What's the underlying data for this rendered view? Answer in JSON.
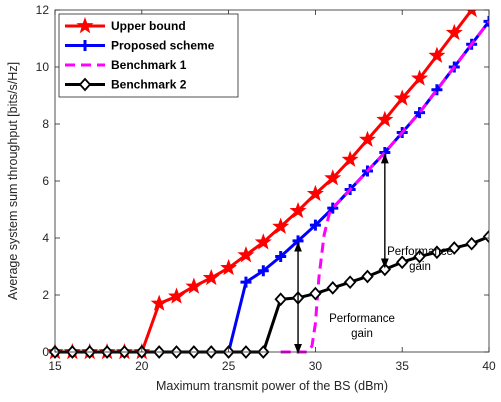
{
  "chart_data": {
    "type": "line",
    "xlabel": "Maximum transmit power of the BS (dBm)",
    "ylabel": "Average system sum throughput [bits/s/Hz]",
    "xlim": [
      15,
      40
    ],
    "ylim": [
      0,
      12
    ],
    "x_ticks": [
      15,
      20,
      25,
      30,
      35,
      40
    ],
    "y_ticks": [
      0,
      2,
      4,
      6,
      8,
      10,
      12
    ],
    "legend_position": "top-left",
    "grid": false,
    "series": [
      {
        "name": "Upper bound",
        "color": "#ff0000",
        "marker": "star",
        "dash": "solid",
        "x": [
          15,
          16,
          17,
          18,
          19,
          20,
          21,
          22,
          23,
          24,
          25,
          26,
          27,
          28,
          29,
          30,
          31,
          32,
          33,
          34,
          35,
          36,
          37,
          38,
          39,
          40
        ],
        "y": [
          0,
          0,
          0,
          0,
          0,
          0,
          1.7,
          1.95,
          2.3,
          2.6,
          2.95,
          3.4,
          3.85,
          4.4,
          4.95,
          5.55,
          6.1,
          6.75,
          7.45,
          8.15,
          8.9,
          9.6,
          10.4,
          11.2,
          12.0,
          12.8
        ]
      },
      {
        "name": "Proposed scheme",
        "color": "#0000ff",
        "marker": "plus",
        "dash": "solid",
        "x": [
          15,
          16,
          17,
          18,
          19,
          20,
          21,
          22,
          23,
          24,
          25,
          26,
          27,
          28,
          29,
          30,
          31,
          32,
          33,
          34,
          35,
          36,
          37,
          38,
          39,
          40
        ],
        "y": [
          0,
          0,
          0,
          0,
          0,
          0,
          0,
          0,
          0,
          0,
          0,
          2.45,
          2.85,
          3.35,
          3.9,
          4.45,
          5.05,
          5.7,
          6.35,
          7.0,
          7.7,
          8.4,
          9.2,
          10.0,
          10.8,
          11.6
        ]
      },
      {
        "name": "Benchmark 1",
        "color": "#ff00ff",
        "marker": "none",
        "dash": "dashed",
        "x": [
          28,
          29,
          29.5,
          29.8,
          30,
          30.2,
          30.5,
          30.8,
          31,
          32,
          33,
          34,
          35,
          36,
          37,
          38,
          39,
          40
        ],
        "y": [
          0,
          0,
          0,
          0.2,
          1.0,
          2.6,
          4.1,
          4.85,
          5.05,
          5.7,
          6.35,
          7.0,
          7.7,
          8.4,
          9.2,
          10.0,
          10.8,
          11.6
        ]
      },
      {
        "name": "Benchmark 2",
        "color": "#000000",
        "marker": "diamond",
        "dash": "solid",
        "x": [
          15,
          16,
          17,
          18,
          19,
          20,
          21,
          22,
          23,
          24,
          25,
          26,
          27,
          28,
          29,
          30,
          31,
          32,
          33,
          34,
          35,
          36,
          37,
          38,
          39,
          40
        ],
        "y": [
          0,
          0,
          0,
          0,
          0,
          0,
          0,
          0,
          0,
          0,
          0,
          0,
          0,
          1.85,
          1.9,
          2.05,
          2.25,
          2.45,
          2.65,
          2.9,
          3.15,
          3.35,
          3.5,
          3.65,
          3.8,
          4.05
        ]
      }
    ],
    "annotations": [
      {
        "lines": [
          "Performance",
          "gain"
        ],
        "arrow_x": 34,
        "arrow_from": 2.9,
        "arrow_to": 7.0
      },
      {
        "lines": [
          "Performance",
          "gain"
        ],
        "arrow_x": 29,
        "arrow_from": -0.1,
        "arrow_to": 3.9
      }
    ]
  }
}
